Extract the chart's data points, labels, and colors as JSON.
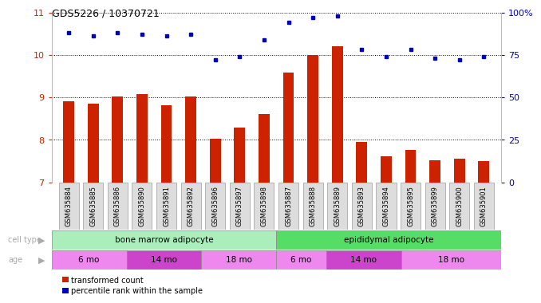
{
  "title": "GDS5226 / 10370721",
  "samples": [
    "GSM635884",
    "GSM635885",
    "GSM635886",
    "GSM635890",
    "GSM635891",
    "GSM635892",
    "GSM635896",
    "GSM635897",
    "GSM635898",
    "GSM635887",
    "GSM635888",
    "GSM635889",
    "GSM635893",
    "GSM635894",
    "GSM635895",
    "GSM635899",
    "GSM635900",
    "GSM635901"
  ],
  "transformed_count": [
    8.9,
    8.85,
    9.02,
    9.08,
    8.82,
    9.02,
    8.02,
    8.28,
    8.6,
    9.58,
    10.0,
    10.2,
    7.95,
    7.62,
    7.77,
    7.52,
    7.55,
    7.5
  ],
  "percentile_rank_pct": [
    88,
    86,
    88,
    87,
    86,
    87,
    72,
    74,
    84,
    94,
    97,
    98,
    78,
    74,
    78,
    73,
    72,
    74
  ],
  "ylim_left": [
    7,
    11
  ],
  "ylim_right": [
    0,
    100
  ],
  "yticks_left": [
    7,
    8,
    9,
    10,
    11
  ],
  "yticks_right": [
    0,
    25,
    50,
    75,
    100
  ],
  "ytick_labels_right": [
    "0",
    "25",
    "50",
    "75",
    "100%"
  ],
  "bar_color": "#cc2200",
  "dot_color": "#0000bb",
  "bar_bottom": 7.0,
  "cell_type_groups": [
    {
      "label": "bone marrow adipocyte",
      "start": 0,
      "end": 9,
      "color": "#aaeebb"
    },
    {
      "label": "epididymal adipocyte",
      "start": 9,
      "end": 18,
      "color": "#55dd66"
    }
  ],
  "age_groups": [
    {
      "label": "6 mo",
      "start": 0,
      "end": 3,
      "color": "#ee88ee"
    },
    {
      "label": "14 mo",
      "start": 3,
      "end": 6,
      "color": "#cc44cc"
    },
    {
      "label": "18 mo",
      "start": 6,
      "end": 9,
      "color": "#ee88ee"
    },
    {
      "label": "6 mo",
      "start": 9,
      "end": 11,
      "color": "#ee88ee"
    },
    {
      "label": "14 mo",
      "start": 11,
      "end": 14,
      "color": "#cc44cc"
    },
    {
      "label": "18 mo",
      "start": 14,
      "end": 18,
      "color": "#ee88ee"
    }
  ],
  "legend_items": [
    {
      "label": "transformed count",
      "color": "#cc2200"
    },
    {
      "label": "percentile rank within the sample",
      "color": "#0000bb"
    }
  ],
  "background_color": "#ffffff",
  "grid_color": "#000000",
  "tick_label_color_left": "#cc2200",
  "tick_label_color_right": "#0000bb",
  "title_fontsize": 9,
  "sample_label_fontsize": 6,
  "label_color": "#aaaaaa"
}
